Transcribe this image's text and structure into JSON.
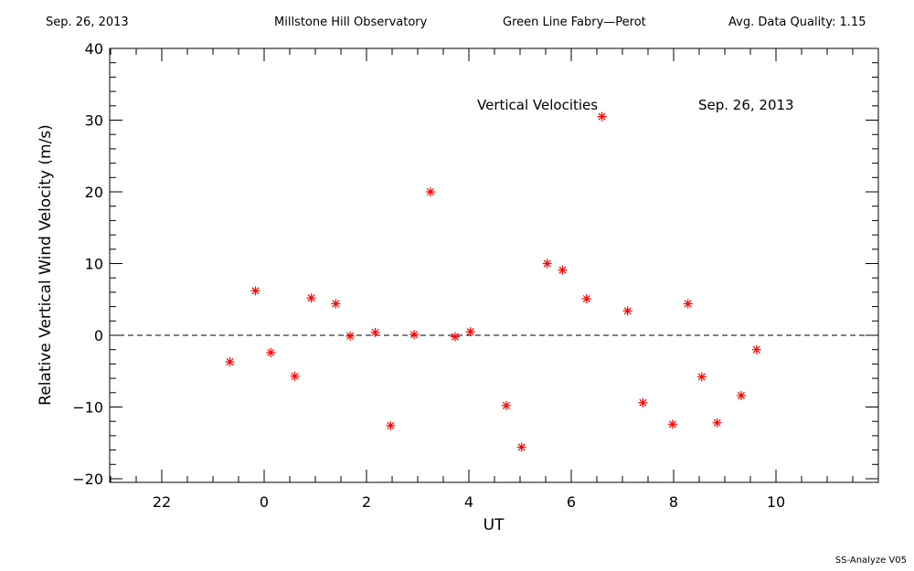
{
  "header": {
    "date": "Sep. 26, 2013",
    "observatory": "Millstone Hill Observatory",
    "instrument": "Green Line Fabry—Perot",
    "quality": "Avg. Data Quality: 1.15"
  },
  "footer": "SS-Analyze V05",
  "chart_data": {
    "type": "scatter",
    "xlabel": "UT",
    "ylabel": "Relative Vertical Wind Velocity (m/s)",
    "xlim": [
      -23,
      12
    ],
    "ylim": [
      -21,
      40.5
    ],
    "xticks": [
      "22",
      "0",
      "2",
      "4",
      "6",
      "8",
      "10"
    ],
    "yticks": [
      -20,
      -10,
      0,
      10,
      20,
      30,
      40
    ],
    "annotations": {
      "label": "Vertical Velocities",
      "date": "Sep. 26, 2013"
    },
    "zero_line": 0,
    "marker_color": "#ff0000",
    "points": [
      {
        "x": -0.67,
        "y": -3.7
      },
      {
        "x": -0.17,
        "y": 6.2
      },
      {
        "x": 0.13,
        "y": -2.4
      },
      {
        "x": 0.6,
        "y": -5.7
      },
      {
        "x": 0.92,
        "y": 5.2
      },
      {
        "x": 1.4,
        "y": 4.4
      },
      {
        "x": 1.68,
        "y": -0.1
      },
      {
        "x": 2.17,
        "y": 0.4
      },
      {
        "x": 2.47,
        "y": -12.6
      },
      {
        "x": 2.93,
        "y": 0.1
      },
      {
        "x": 3.25,
        "y": 20.0
      },
      {
        "x": 3.73,
        "y": -0.2
      },
      {
        "x": 4.03,
        "y": 0.5
      },
      {
        "x": 4.73,
        "y": -9.8
      },
      {
        "x": 5.03,
        "y": -15.6
      },
      {
        "x": 5.53,
        "y": 10.0
      },
      {
        "x": 5.83,
        "y": 9.1
      },
      {
        "x": 6.3,
        "y": 5.1
      },
      {
        "x": 6.6,
        "y": 30.5
      },
      {
        "x": 7.1,
        "y": 3.4
      },
      {
        "x": 7.4,
        "y": -9.4
      },
      {
        "x": 7.98,
        "y": -12.4
      },
      {
        "x": 8.28,
        "y": 4.4
      },
      {
        "x": 8.55,
        "y": -5.8
      },
      {
        "x": 8.85,
        "y": -12.2
      },
      {
        "x": 9.32,
        "y": -8.4
      },
      {
        "x": 9.62,
        "y": -2.0
      }
    ]
  }
}
